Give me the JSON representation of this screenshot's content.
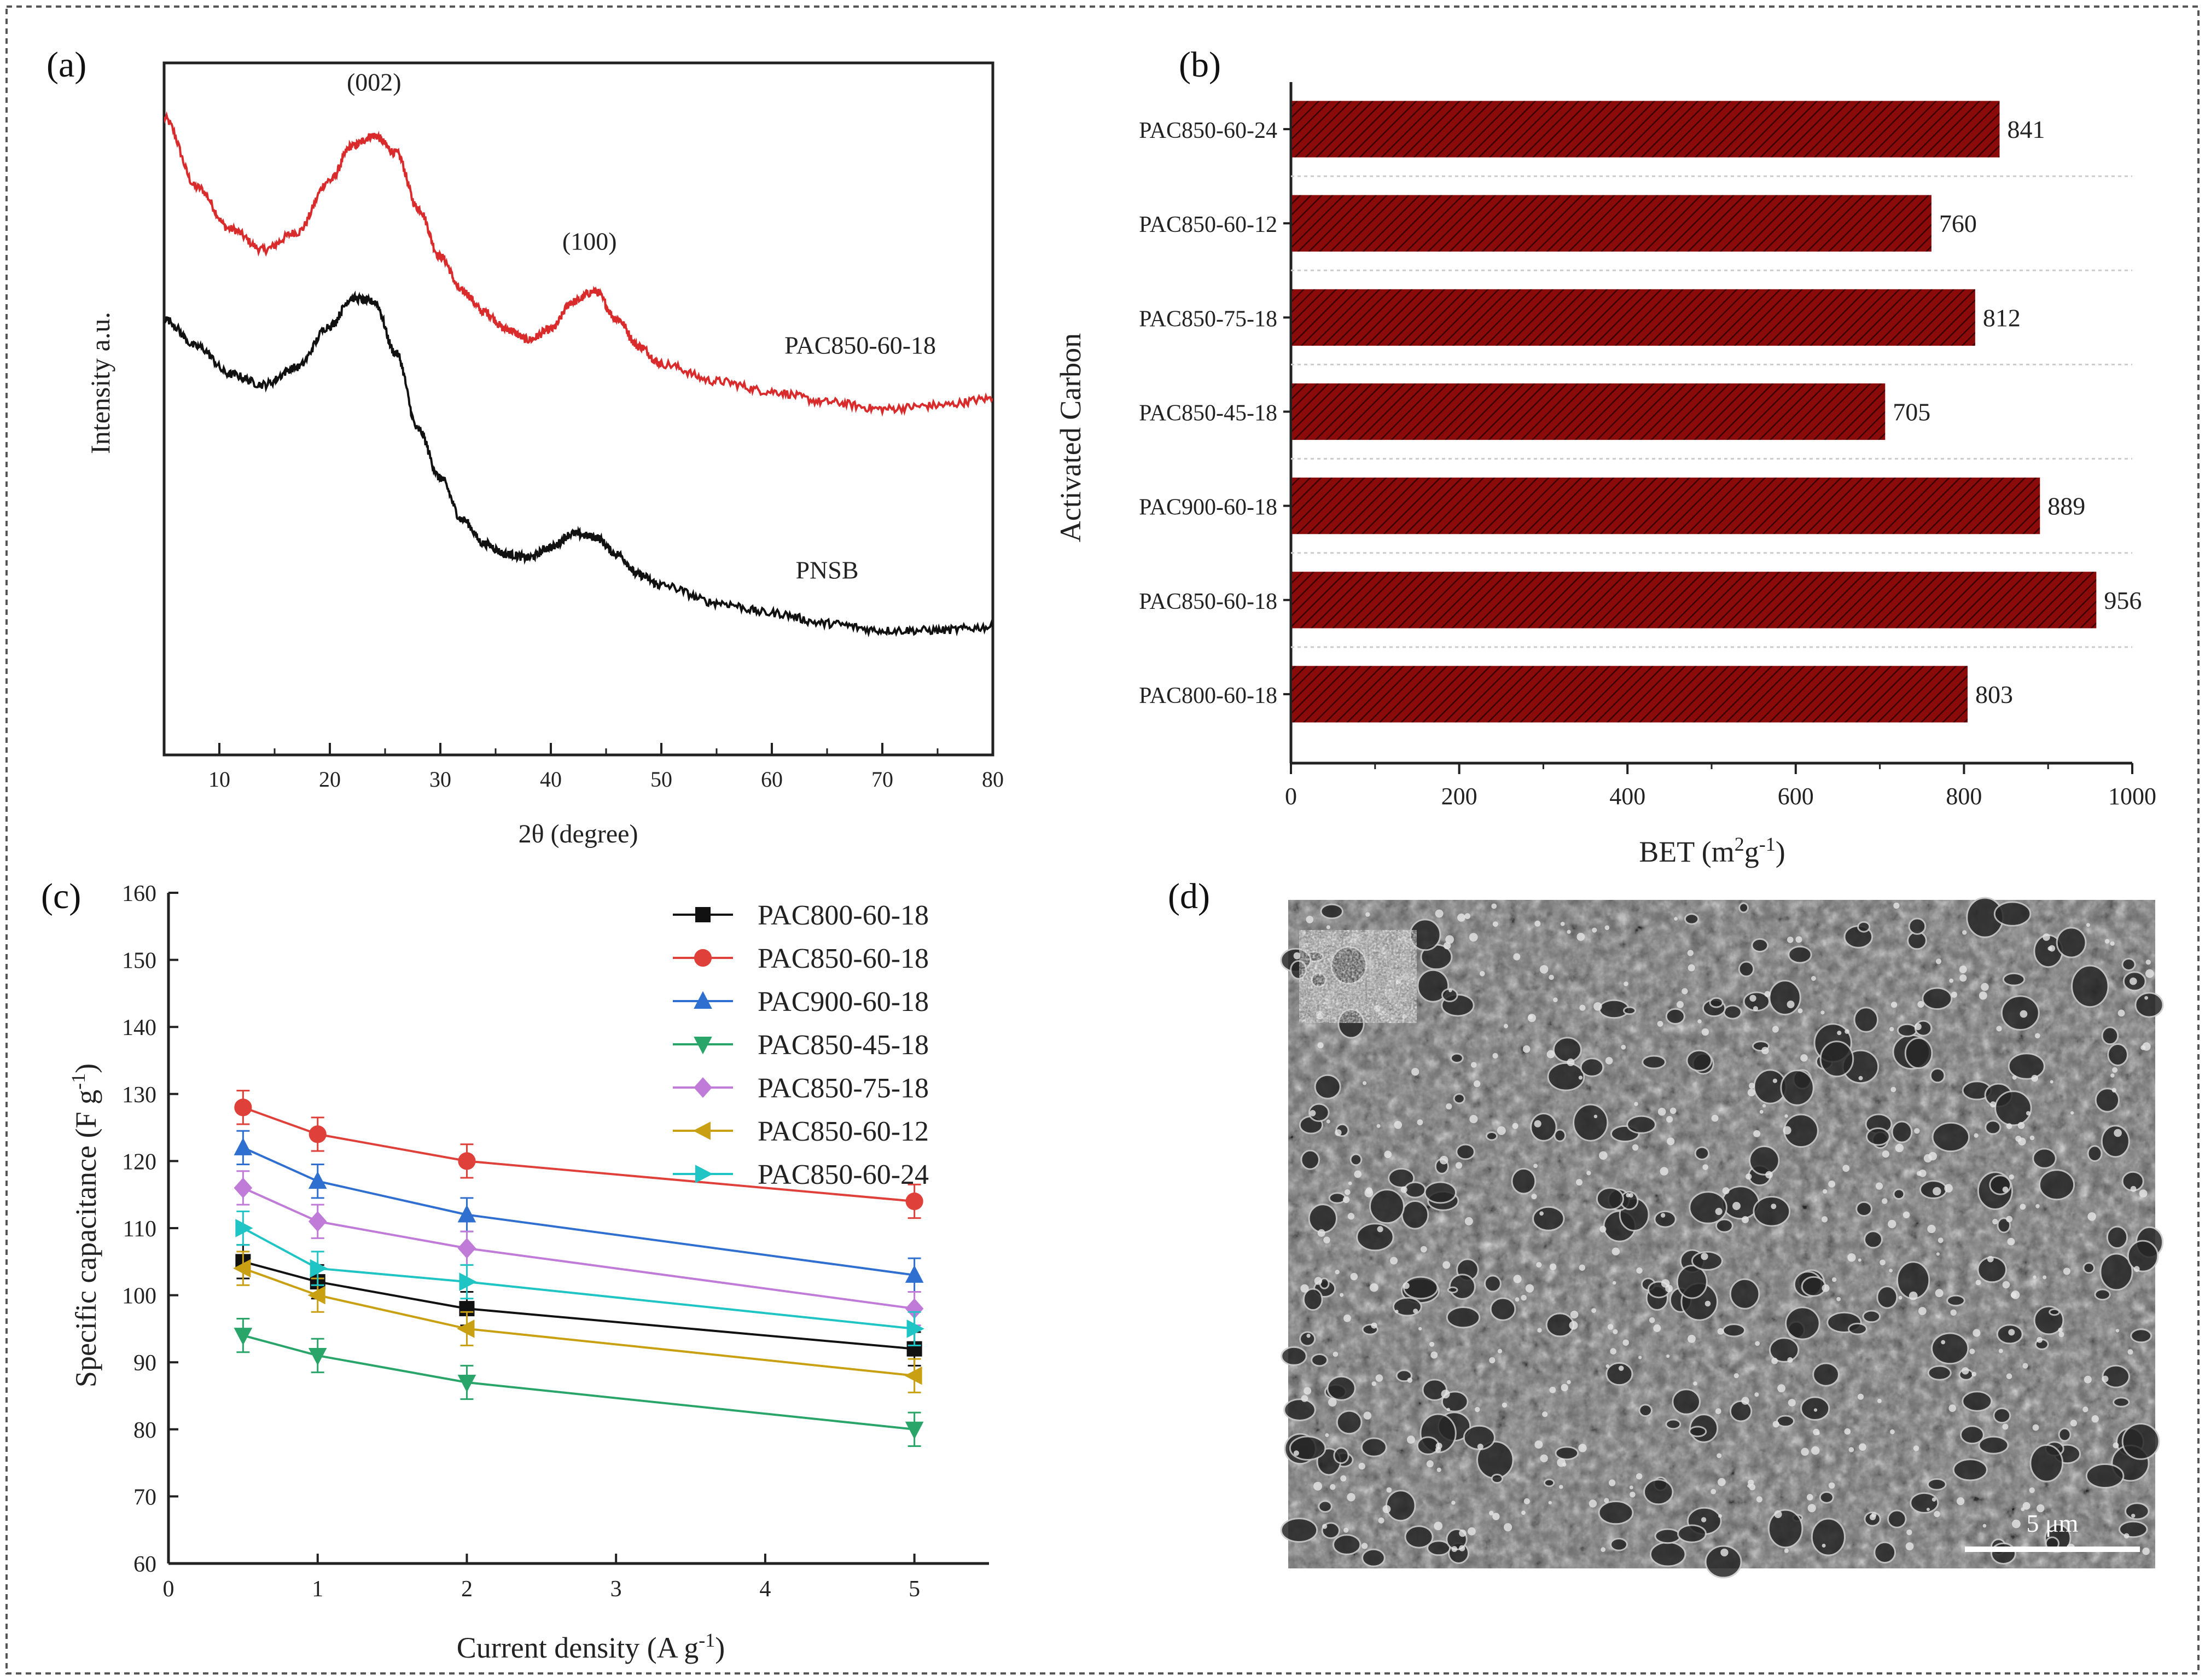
{
  "colors": {
    "axis": "#222222",
    "bar_fill": "#8b0a0a",
    "bar_hatch": "#3a0000",
    "xrd_pac": "#d92b2b",
    "xrd_pnsb": "#111111",
    "sem_bg": "#6e6e6e",
    "border": "#555555"
  },
  "panel_labels": {
    "a": "(a)",
    "b": "(b)",
    "c": "(c)",
    "d": "(d)"
  },
  "chart_data": [
    {
      "id": "a",
      "type": "line",
      "title": "",
      "xlabel": "2θ (degree)",
      "ylabel": "Intensity a.u.",
      "xlim": [
        5,
        80
      ],
      "xticks": [
        10,
        20,
        30,
        40,
        50,
        60,
        70,
        80
      ],
      "series": [
        {
          "name": "PAC850-60-18",
          "color": "#d92b2b",
          "x": [
            5,
            8,
            11,
            14,
            17,
            20,
            22,
            24,
            26,
            28,
            30,
            32,
            34,
            36,
            38,
            40,
            42,
            44,
            46,
            48,
            50,
            55,
            60,
            65,
            70,
            75,
            80
          ],
          "y": [
            0.92,
            0.82,
            0.76,
            0.73,
            0.755,
            0.83,
            0.88,
            0.895,
            0.87,
            0.79,
            0.72,
            0.67,
            0.64,
            0.615,
            0.6,
            0.615,
            0.655,
            0.67,
            0.63,
            0.59,
            0.565,
            0.54,
            0.525,
            0.51,
            0.5,
            0.505,
            0.515
          ]
        },
        {
          "name": "PNSB",
          "color": "#111111",
          "x": [
            5,
            8,
            11,
            14,
            17,
            20,
            22,
            24,
            26,
            28,
            30,
            32,
            34,
            36,
            38,
            40,
            42,
            44,
            46,
            48,
            50,
            55,
            60,
            65,
            70,
            75,
            80
          ],
          "y": [
            0.63,
            0.59,
            0.55,
            0.535,
            0.56,
            0.62,
            0.66,
            0.655,
            0.58,
            0.47,
            0.4,
            0.34,
            0.305,
            0.29,
            0.285,
            0.3,
            0.32,
            0.315,
            0.29,
            0.26,
            0.245,
            0.22,
            0.205,
            0.19,
            0.18,
            0.18,
            0.185
          ]
        }
      ],
      "annotations": [
        {
          "text": "(002)",
          "x": 24,
          "y": 0.96
        },
        {
          "text": "(100)",
          "x": 43.5,
          "y": 0.73
        },
        {
          "text": "PAC850-60-18",
          "x": 68,
          "y": 0.58
        },
        {
          "text": "PNSB",
          "x": 65,
          "y": 0.255
        }
      ]
    },
    {
      "id": "b",
      "type": "bar",
      "orientation": "horizontal",
      "title": "",
      "xlabel": "BET (m²g⁻¹)",
      "xlabel_parts": [
        "BET (m",
        "2",
        "g",
        "-1",
        ")"
      ],
      "ylabel": "Activated Carbon",
      "xlim": [
        0,
        1000
      ],
      "xticks": [
        0,
        200,
        400,
        600,
        800,
        1000
      ],
      "categories": [
        "PAC850-60-24",
        "PAC850-60-12",
        "PAC850-75-18",
        "PAC850-45-18",
        "PAC900-60-18",
        "PAC850-60-18",
        "PAC800-60-18"
      ],
      "values": [
        841,
        760,
        812,
        705,
        889,
        956,
        803
      ],
      "value_labels": [
        "841",
        "760",
        "812",
        "705",
        "889",
        "956",
        "803"
      ]
    },
    {
      "id": "c",
      "type": "line",
      "title": "",
      "xlabel": "Current density (A g⁻¹)",
      "xlabel_parts": [
        "Current density (A g",
        "-1",
        ")"
      ],
      "ylabel": "Specific capacitance (F g⁻¹)",
      "ylabel_parts": [
        "Specific capacitance (F g",
        "-1",
        ")"
      ],
      "xlim": [
        0,
        5.5
      ],
      "ylim": [
        60,
        160
      ],
      "xticks": [
        0,
        1,
        2,
        3,
        4,
        5
      ],
      "yticks": [
        60,
        70,
        80,
        90,
        100,
        110,
        120,
        130,
        140,
        150,
        160
      ],
      "x": [
        0.5,
        1,
        2,
        5
      ],
      "error": 2.5,
      "legend_position": "top-right",
      "series": [
        {
          "name": "PAC800-60-18",
          "color": "#111111",
          "marker": "square",
          "values": [
            105,
            102,
            98,
            92
          ]
        },
        {
          "name": "PAC850-60-18",
          "color": "#e0403a",
          "marker": "circle",
          "values": [
            128,
            124,
            120,
            114
          ]
        },
        {
          "name": "PAC900-60-18",
          "color": "#2f6fd0",
          "marker": "triangle-up",
          "values": [
            122,
            117,
            112,
            103
          ]
        },
        {
          "name": "PAC850-45-18",
          "color": "#2aa56a",
          "marker": "triangle-down",
          "values": [
            94,
            91,
            87,
            80
          ]
        },
        {
          "name": "PAC850-75-18",
          "color": "#c07ad8",
          "marker": "diamond",
          "values": [
            116,
            111,
            107,
            98
          ]
        },
        {
          "name": "PAC850-60-12",
          "color": "#c9a012",
          "marker": "triangle-left",
          "values": [
            104,
            100,
            95,
            88
          ]
        },
        {
          "name": "PAC850-60-24",
          "color": "#1fc4c4",
          "marker": "triangle-right",
          "values": [
            110,
            104,
            102,
            95
          ]
        }
      ]
    }
  ],
  "sem": {
    "scale_bar_label": "5 μm"
  }
}
